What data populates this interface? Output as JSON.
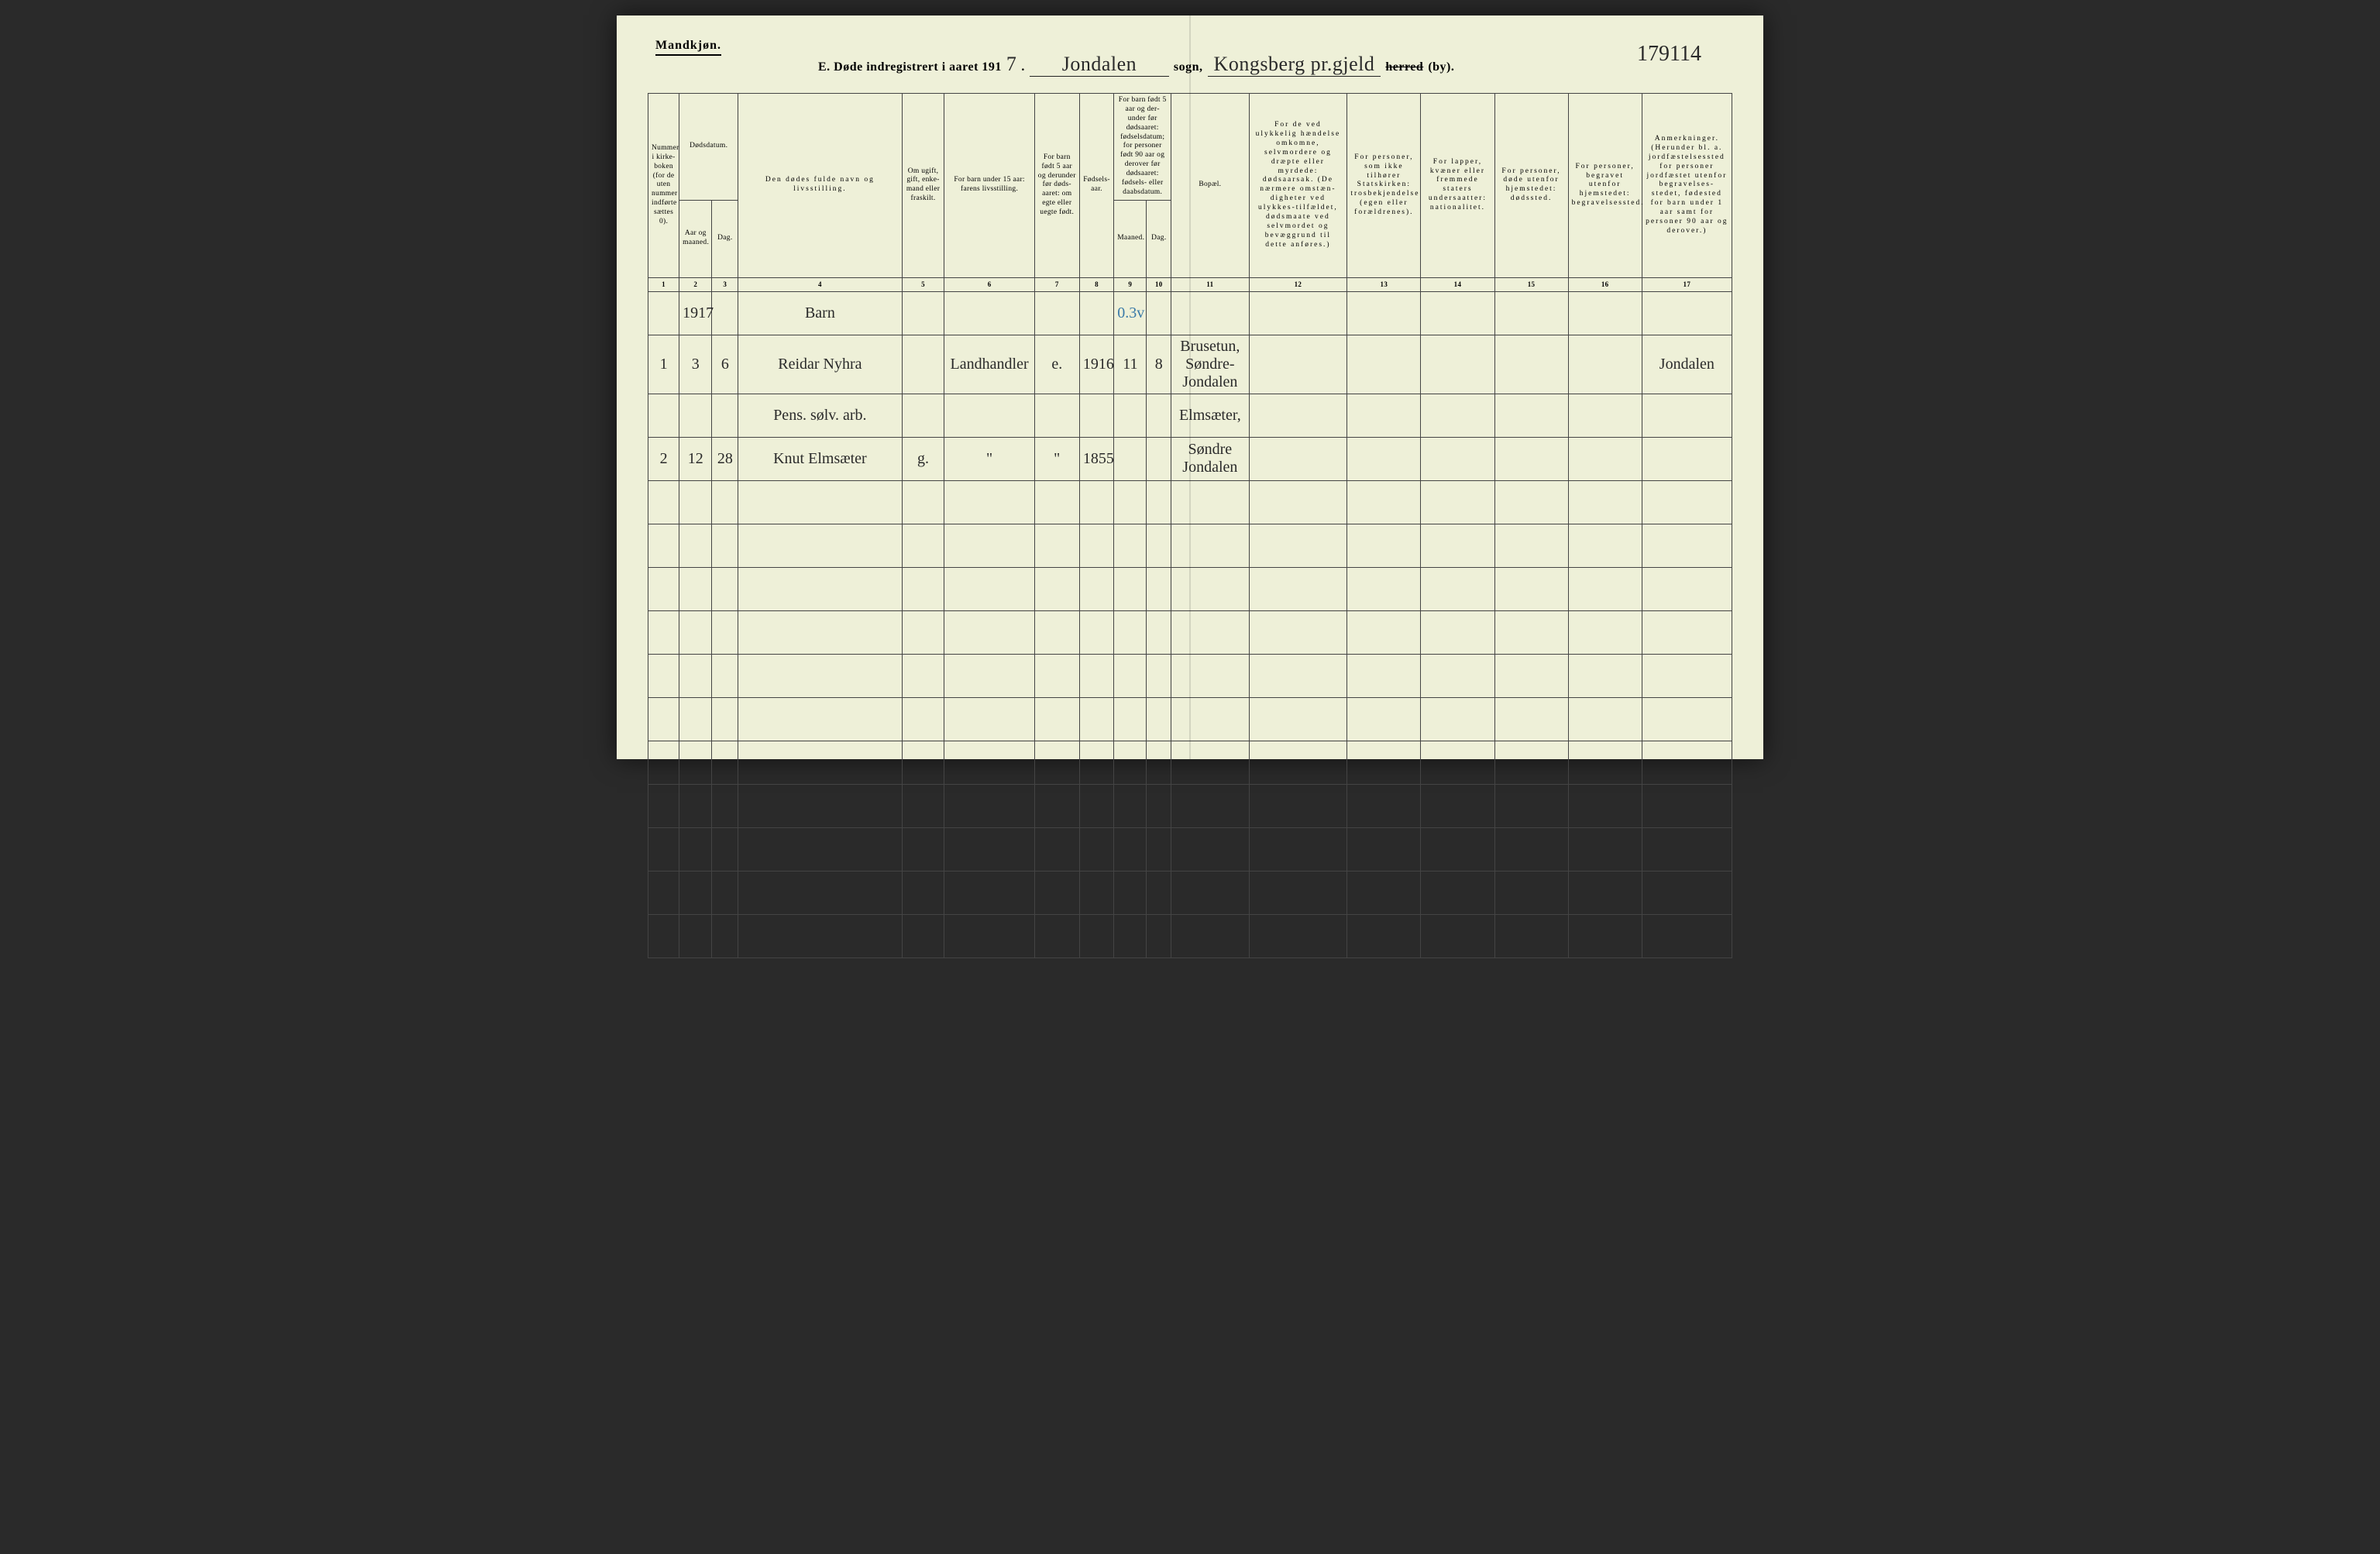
{
  "header": {
    "gender": "Mandkjøn.",
    "title_prefix": "E.  Døde indregistrert i aaret 191",
    "year_digit": "7",
    "sogn_handwritten": "Jondalen",
    "sogn_label": "sogn,",
    "herred_handwritten": "Kongsberg pr.gjeld",
    "herred_struck": "herred",
    "herred_suffix": "(by).",
    "page_number": "179114"
  },
  "columns": {
    "c1": "Nummer i kirke-boken (for de uten nummer indførte sættes 0).",
    "c2_group": "Dødsdatum.",
    "c2": "Aar og maaned.",
    "c3": "Dag.",
    "c4": "Den dødes fulde navn og livsstilling.",
    "c5": "Om ugift, gift, enke-mand eller fraskilt.",
    "c6": "For barn under 15 aar: farens livsstilling.",
    "c7": "For barn født 5 aar og derunder før døds-aaret: om egte eller uegte født.",
    "c8": "Fødsels-aar.",
    "c9_group": "For barn født 5 aar og der-under før dødsaaret: fødselsdatum; for personer født 90 aar og derover før dødsaaret: fødsels- eller daabsdatum.",
    "c9": "Maaned.",
    "c10": "Dag.",
    "c11": "Bopæl.",
    "c12": "For de ved ulykkelig hændelse omkomne, selvmordere og dræpte eller myrdede: dødsaarsak. (De nærmere omstæn-digheter ved ulykkes-tilfældet, dødsmaate ved selvmordet og bevæggrund til dette anføres.)",
    "c13": "For personer, som ikke tilhører Statskirken: trosbekjendelse (egen eller forældrenes).",
    "c14": "For lapper, kvæner eller fremmede staters undersaatter: nationalitet.",
    "c15": "For personer, døde utenfor hjemstedet: dødssted.",
    "c16": "For personer, begravet utenfor hjemstedet: begravelsessted.",
    "c17": "Anmerkninger. (Herunder bl. a. jordfæstelsessted for personer jordfæstet utenfor begravelses-stedet, fødested for barn under 1 aar samt for personer 90 aar og derover.)"
  },
  "colnums": [
    "1",
    "2",
    "3",
    "4",
    "5",
    "6",
    "7",
    "8",
    "9",
    "10",
    "11",
    "12",
    "13",
    "14",
    "15",
    "16",
    "17"
  ],
  "rows": [
    {
      "c1": "",
      "c2": "1917",
      "c3": "",
      "c4": "Barn",
      "c5": "",
      "c6": "",
      "c7": "",
      "c8": "",
      "c9": "0.3v",
      "c10": "",
      "c11": "",
      "c12": "",
      "c13": "",
      "c14": "",
      "c15": "",
      "c16": "",
      "c17": ""
    },
    {
      "c1": "1",
      "c2": "3",
      "c3": "6",
      "c4": "Reidar Nyhra",
      "c5": "",
      "c6": "Landhandler",
      "c7": "e.",
      "c8": "1916",
      "c9": "11",
      "c10": "8",
      "c11": "Brusetun, Søndre-Jondalen",
      "c12": "",
      "c13": "",
      "c14": "",
      "c15": "",
      "c16": "",
      "c17": "Jondalen"
    },
    {
      "c1": "",
      "c2": "",
      "c3": "",
      "c4": "Pens. sølv. arb.",
      "c5": "",
      "c6": "",
      "c7": "",
      "c8": "",
      "c9": "",
      "c10": "",
      "c11": "Elmsæter,",
      "c12": "",
      "c13": "",
      "c14": "",
      "c15": "",
      "c16": "",
      "c17": ""
    },
    {
      "c1": "2",
      "c2": "12",
      "c3": "28",
      "c4": "Knut Elmsæter",
      "c5": "g.",
      "c6": "\"",
      "c7": "\"",
      "c8": "1855",
      "c9": "",
      "c10": "",
      "c11": "Søndre Jondalen",
      "c12": "",
      "c13": "",
      "c14": "",
      "c15": "",
      "c16": "",
      "c17": ""
    }
  ],
  "empty_row_count": 11,
  "style": {
    "page_bg": "#eef0d8",
    "line_color": "#444444",
    "ink_color": "#2a2a2a",
    "blue_pencil": "#3a7aa8",
    "header_font_size_pt": 16,
    "cell_font_size_pt": 10,
    "handwriting_font_size_pt": 20
  }
}
